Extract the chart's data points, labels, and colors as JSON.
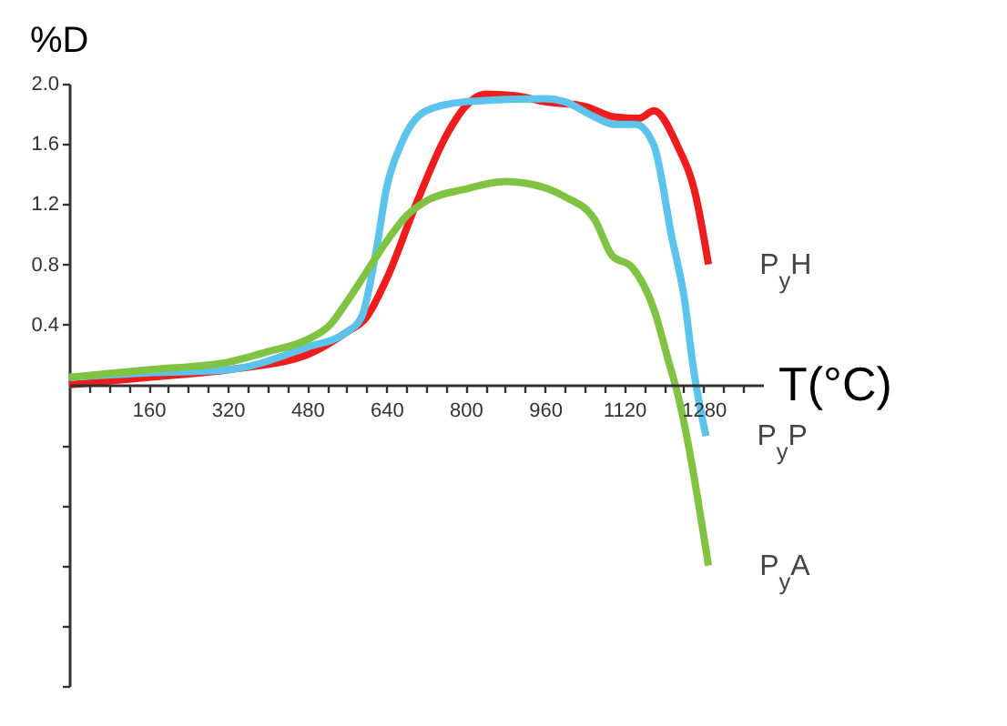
{
  "chart_data": {
    "type": "line",
    "xlabel": "T(°C)",
    "ylabel": "%D",
    "xlim": [
      0,
      1400
    ],
    "ylim": [
      -2.0,
      2.0
    ],
    "xticks": [
      {
        "value": 40,
        "label": null
      },
      {
        "value": 80,
        "label": null
      },
      {
        "value": 120,
        "label": null
      },
      160,
      {
        "value": 200,
        "label": null
      },
      {
        "value": 240,
        "label": null
      },
      {
        "value": 280,
        "label": null
      },
      320,
      {
        "value": 360,
        "label": null
      },
      {
        "value": 400,
        "label": null
      },
      {
        "value": 440,
        "label": null
      },
      480,
      {
        "value": 520,
        "label": null
      },
      {
        "value": 560,
        "label": null
      },
      {
        "value": 600,
        "label": null
      },
      640,
      {
        "value": 680,
        "label": null
      },
      {
        "value": 720,
        "label": null
      },
      {
        "value": 760,
        "label": null
      },
      800,
      {
        "value": 840,
        "label": null
      },
      {
        "value": 880,
        "label": null
      },
      {
        "value": 920,
        "label": null
      },
      960,
      {
        "value": 1000,
        "label": null
      },
      {
        "value": 1040,
        "label": null
      },
      {
        "value": 1080,
        "label": null
      },
      1120,
      {
        "value": 1160,
        "label": null
      },
      {
        "value": 1200,
        "label": null
      },
      {
        "value": 1240,
        "label": null
      },
      1280,
      {
        "value": 1320,
        "label": null
      },
      {
        "value": 1360,
        "label": null
      }
    ],
    "yticks": [
      {
        "value": -2.0,
        "label": null
      },
      {
        "value": -1.6,
        "label": null
      },
      {
        "value": -1.2,
        "label": null
      },
      {
        "value": -0.8,
        "label": null
      },
      {
        "value": -0.4,
        "label": null
      },
      0.4,
      0.8,
      1.2,
      1.6,
      {
        "value": 2.0,
        "label": "2.0"
      }
    ],
    "grid": false,
    "marker": "none",
    "line_style": "solid",
    "series": [
      {
        "name": "P$_{y}$H",
        "color": "#ee1c1c",
        "x": [
          0,
          160,
          320,
          480,
          560,
          600,
          640,
          700,
          760,
          800,
          840,
          900,
          960,
          1040,
          1100,
          1150,
          1180,
          1227,
          1264,
          1290
        ],
        "values": [
          0.0,
          0.05,
          0.1,
          0.2,
          0.35,
          0.45,
          0.7,
          1.2,
          1.65,
          1.85,
          1.93,
          1.92,
          1.88,
          1.85,
          1.78,
          1.77,
          1.82,
          1.59,
          1.26,
          0.8
        ]
      },
      {
        "name": "P$_{y}$P",
        "color": "#5bc3ec",
        "x": [
          0,
          160,
          320,
          480,
          560,
          590,
          620,
          640,
          670,
          720,
          800,
          960,
          1000,
          1060,
          1100,
          1143,
          1180,
          1216,
          1241,
          1260,
          1285
        ],
        "values": [
          0.05,
          0.08,
          0.1,
          0.25,
          0.35,
          0.45,
          0.9,
          1.3,
          1.6,
          1.82,
          1.88,
          1.9,
          1.88,
          1.78,
          1.73,
          1.73,
          1.59,
          0.98,
          0.58,
          0.1,
          -0.34
        ]
      },
      {
        "name": "P$_{y}$A",
        "color": "#80c342",
        "x": [
          0,
          160,
          320,
          400,
          480,
          527,
          560,
          600,
          640,
          680,
          720,
          800,
          880,
          920,
          1000,
          1060,
          1095,
          1136,
          1180,
          1210,
          1227,
          1290
        ],
        "values": [
          0.05,
          0.1,
          0.15,
          0.22,
          0.3,
          0.4,
          0.55,
          0.75,
          0.95,
          1.12,
          1.22,
          1.3,
          1.35,
          1.34,
          1.25,
          1.1,
          0.86,
          0.78,
          0.5,
          0.15,
          -0.05,
          -1.2
        ]
      }
    ]
  }
}
